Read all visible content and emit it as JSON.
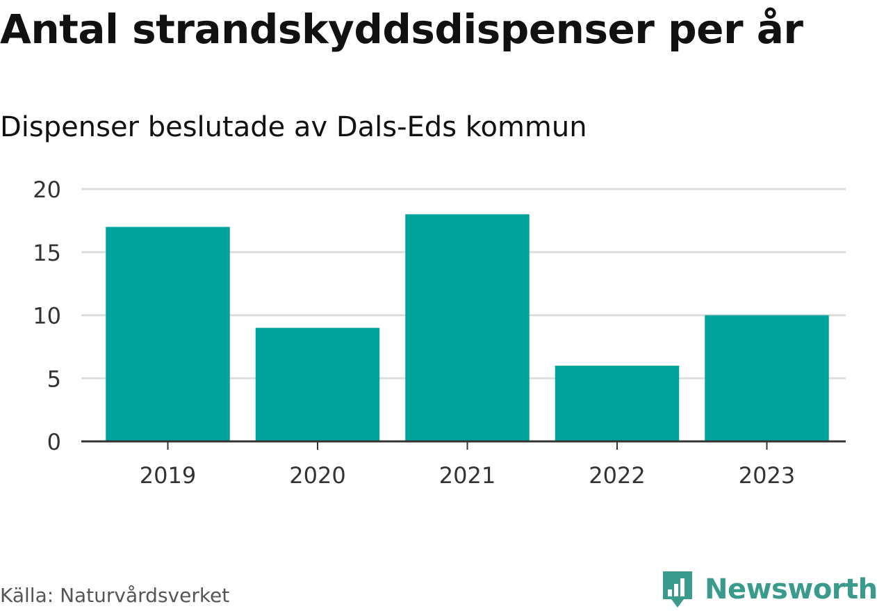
{
  "chart_data": {
    "type": "bar",
    "title": "Antal strandskyddsdispenser per år",
    "subtitle": "Dispenser beslutade av Dals-Eds kommun",
    "categories": [
      "2019",
      "2020",
      "2021",
      "2022",
      "2023"
    ],
    "values": [
      17,
      9,
      18,
      6,
      10
    ],
    "yticks": [
      "0",
      "5",
      "10",
      "15",
      "20"
    ],
    "ylim": [
      0,
      20
    ],
    "xlabel": "",
    "ylabel": "",
    "grid": true,
    "bar_color": "#00a39a"
  },
  "footer": {
    "source": "Källa: Naturvårdsverket",
    "brand": "Newsworthy",
    "brand_color": "#3a9a8c"
  }
}
